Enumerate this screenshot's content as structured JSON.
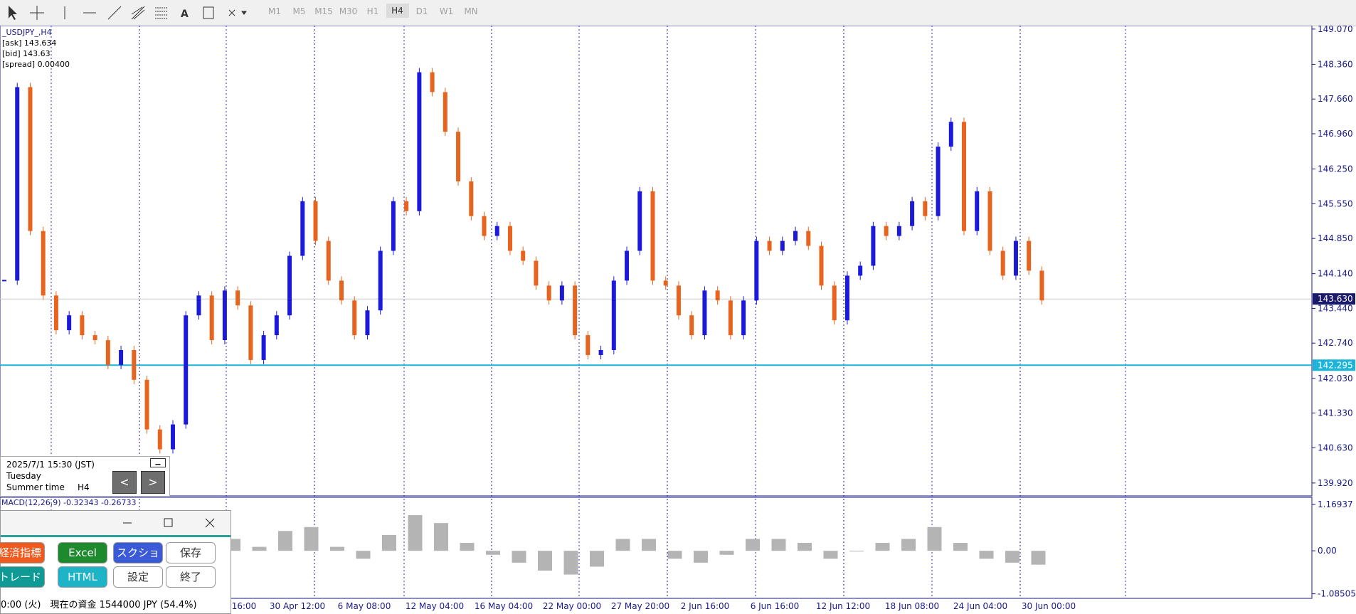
{
  "toolbar": {
    "timeframes": [
      "M1",
      "M5",
      "M15",
      "M30",
      "H1",
      "H4",
      "D1",
      "W1",
      "MN"
    ],
    "active": "H4"
  },
  "chart_data": [
    {
      "type": "candlestick",
      "title": "_USDJPY_,H4",
      "quote_lines": [
        "[ask] 143.634",
        "[bid] 143.63",
        "[spread] 0.00400"
      ],
      "values": [
        144.0,
        147.9,
        145.0,
        143.7,
        143.0,
        143.3,
        142.9,
        142.8,
        142.3,
        142.6,
        142.0,
        141.0,
        140.6,
        141.1,
        143.3,
        143.7,
        142.8,
        143.8,
        143.5,
        142.4,
        142.9,
        143.3,
        144.5,
        145.6,
        144.8,
        144.0,
        143.6,
        142.9,
        143.4,
        144.6,
        145.6,
        145.4,
        148.2,
        147.8,
        147.0,
        146.0,
        145.3,
        144.9,
        145.1,
        144.6,
        144.4,
        143.9,
        143.6,
        143.9,
        142.9,
        142.5,
        142.6,
        144.0,
        144.6,
        145.8,
        144.0,
        143.9,
        143.3,
        142.9,
        143.8,
        143.6,
        142.9,
        143.6,
        144.8,
        144.6,
        144.8,
        145.0,
        144.7,
        143.9,
        143.2,
        144.1,
        144.3,
        145.1,
        144.9,
        145.1,
        145.6,
        145.3,
        146.7,
        147.2,
        145.0,
        145.8,
        144.6,
        144.1,
        144.8,
        144.2,
        143.6
      ],
      "up_color": "#1a1ad8",
      "down_color": "#e8641e",
      "ylim": [
        139.66,
        149.14
      ],
      "yticks": [
        {
          "value": 149.07,
          "label": "149.070"
        },
        {
          "value": 148.36,
          "label": "148.360"
        },
        {
          "value": 147.66,
          "label": "147.660"
        },
        {
          "value": 146.96,
          "label": "146.960"
        },
        {
          "value": 146.25,
          "label": "146.250"
        },
        {
          "value": 145.55,
          "label": "145.550"
        },
        {
          "value": 144.85,
          "label": "144.850"
        },
        {
          "value": 144.14,
          "label": "144.140"
        },
        {
          "value": 143.44,
          "label": "143.440"
        },
        {
          "value": 142.74,
          "label": "142.740"
        },
        {
          "value": 142.03,
          "label": "142.030"
        },
        {
          "value": 141.33,
          "label": "141.330"
        },
        {
          "value": 140.63,
          "label": "140.630"
        },
        {
          "value": 139.92,
          "label": "139.920"
        }
      ],
      "bid_line": {
        "value": 143.63,
        "label": "143.630"
      },
      "level_line": {
        "value": 142.295,
        "label": "142.295"
      },
      "x_labels": [
        "16:00",
        "30 Apr 12:00",
        "6 May 08:00",
        "12 May 04:00",
        "16 May 04:00",
        "22 May 00:00",
        "27 May 20:00",
        "2 Jun 16:00",
        "6 Jun 16:00",
        "12 Jun 12:00",
        "18 Jun 08:00",
        "24 Jun 04:00",
        "30 Jun 00:00"
      ]
    },
    {
      "type": "bar",
      "title": "MACD(12,26,9) -0.32343 -0.26733",
      "values": [
        0.3,
        0.1,
        0.5,
        0.6,
        0.1,
        -0.2,
        0.4,
        0.9,
        0.7,
        0.2,
        -0.1,
        -0.3,
        -0.5,
        -0.6,
        -0.4,
        0.3,
        0.3,
        -0.2,
        -0.3,
        -0.1,
        0.3,
        0.3,
        0.2,
        -0.2,
        0.0,
        0.2,
        0.3,
        0.6,
        0.2,
        -0.2,
        -0.3,
        -0.35
      ],
      "color": "#b4b4b4",
      "ylim": [
        -1.2,
        1.35
      ],
      "yticks": [
        1.16937,
        {
          "value": 0,
          "label": "0.00"
        },
        -1.08505
      ]
    }
  ],
  "info_panel": {
    "datetime": "2025/7/1 15:30 (JST)",
    "weekday": "Tuesday",
    "season": "Summer time",
    "timeframe": "H4",
    "prev": "<",
    "next": ">"
  },
  "tool_window": {
    "buttons": [
      "経済指標",
      "Excel",
      "スクショ",
      "保存",
      "トレード",
      "HTML",
      "設定",
      "終了"
    ],
    "status": "0:00 (火)　現在の資金 1544000 JPY (54.4%)"
  }
}
